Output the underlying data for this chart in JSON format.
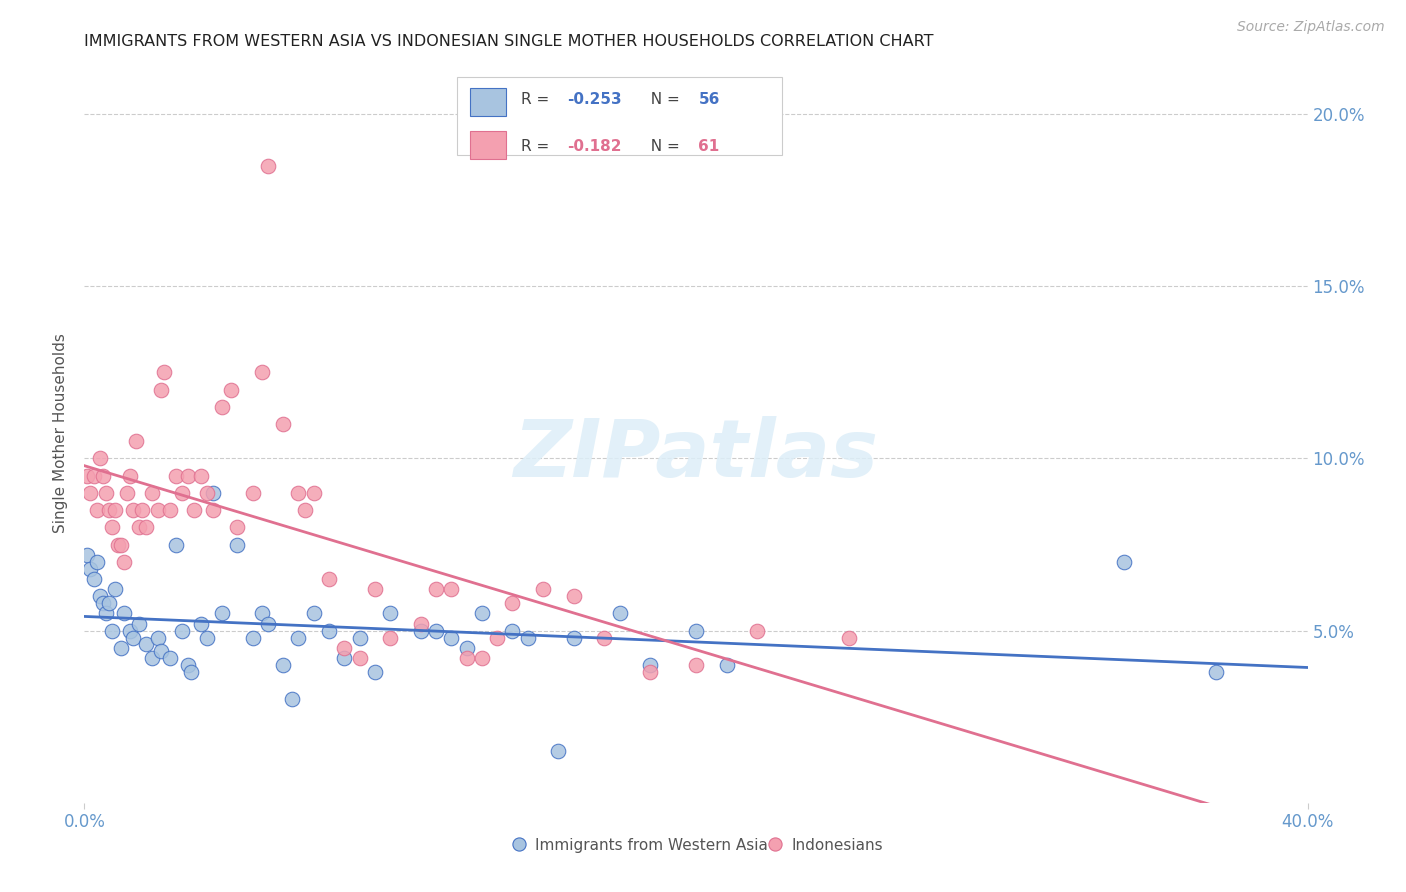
{
  "title": "IMMIGRANTS FROM WESTERN ASIA VS INDONESIAN SINGLE MOTHER HOUSEHOLDS CORRELATION CHART",
  "source": "Source: ZipAtlas.com",
  "ylabel": "Single Mother Households",
  "yticks_right": [
    "20.0%",
    "15.0%",
    "10.0%",
    "5.0%"
  ],
  "yticks_right_vals": [
    0.2,
    0.15,
    0.1,
    0.05
  ],
  "xmin": 0.0,
  "xmax": 0.4,
  "ymin": 0.0,
  "ymax": 0.215,
  "legend_blue_label": "Immigrants from Western Asia",
  "legend_pink_label": "Indonesians",
  "watermark": "ZIPatlas",
  "blue_color": "#a8c4e0",
  "pink_color": "#f4a0b0",
  "blue_line_color": "#4472c4",
  "pink_line_color": "#e07090",
  "axis_color": "#6699cc",
  "title_color": "#222222",
  "blue_x": [
    0.001,
    0.002,
    0.003,
    0.004,
    0.005,
    0.006,
    0.007,
    0.008,
    0.009,
    0.01,
    0.012,
    0.013,
    0.015,
    0.016,
    0.018,
    0.02,
    0.022,
    0.024,
    0.025,
    0.028,
    0.03,
    0.032,
    0.034,
    0.035,
    0.038,
    0.04,
    0.042,
    0.045,
    0.05,
    0.055,
    0.058,
    0.06,
    0.065,
    0.068,
    0.07,
    0.075,
    0.08,
    0.085,
    0.09,
    0.095,
    0.1,
    0.11,
    0.115,
    0.12,
    0.125,
    0.13,
    0.14,
    0.145,
    0.155,
    0.16,
    0.175,
    0.185,
    0.2,
    0.21,
    0.34,
    0.37
  ],
  "blue_y": [
    0.072,
    0.068,
    0.065,
    0.07,
    0.06,
    0.058,
    0.055,
    0.058,
    0.05,
    0.062,
    0.045,
    0.055,
    0.05,
    0.048,
    0.052,
    0.046,
    0.042,
    0.048,
    0.044,
    0.042,
    0.075,
    0.05,
    0.04,
    0.038,
    0.052,
    0.048,
    0.09,
    0.055,
    0.075,
    0.048,
    0.055,
    0.052,
    0.04,
    0.03,
    0.048,
    0.055,
    0.05,
    0.042,
    0.048,
    0.038,
    0.055,
    0.05,
    0.05,
    0.048,
    0.045,
    0.055,
    0.05,
    0.048,
    0.015,
    0.048,
    0.055,
    0.04,
    0.05,
    0.04,
    0.07,
    0.038
  ],
  "pink_x": [
    0.001,
    0.002,
    0.003,
    0.004,
    0.005,
    0.006,
    0.007,
    0.008,
    0.009,
    0.01,
    0.011,
    0.012,
    0.013,
    0.014,
    0.015,
    0.016,
    0.017,
    0.018,
    0.019,
    0.02,
    0.022,
    0.024,
    0.025,
    0.026,
    0.028,
    0.03,
    0.032,
    0.034,
    0.036,
    0.038,
    0.04,
    0.042,
    0.045,
    0.048,
    0.05,
    0.055,
    0.058,
    0.06,
    0.065,
    0.07,
    0.072,
    0.075,
    0.08,
    0.085,
    0.09,
    0.095,
    0.1,
    0.11,
    0.115,
    0.12,
    0.125,
    0.13,
    0.135,
    0.14,
    0.15,
    0.16,
    0.17,
    0.185,
    0.2,
    0.22,
    0.25
  ],
  "pink_y": [
    0.095,
    0.09,
    0.095,
    0.085,
    0.1,
    0.095,
    0.09,
    0.085,
    0.08,
    0.085,
    0.075,
    0.075,
    0.07,
    0.09,
    0.095,
    0.085,
    0.105,
    0.08,
    0.085,
    0.08,
    0.09,
    0.085,
    0.12,
    0.125,
    0.085,
    0.095,
    0.09,
    0.095,
    0.085,
    0.095,
    0.09,
    0.085,
    0.115,
    0.12,
    0.08,
    0.09,
    0.125,
    0.185,
    0.11,
    0.09,
    0.085,
    0.09,
    0.065,
    0.045,
    0.042,
    0.062,
    0.048,
    0.052,
    0.062,
    0.062,
    0.042,
    0.042,
    0.048,
    0.058,
    0.062,
    0.06,
    0.048,
    0.038,
    0.04,
    0.05,
    0.048
  ]
}
